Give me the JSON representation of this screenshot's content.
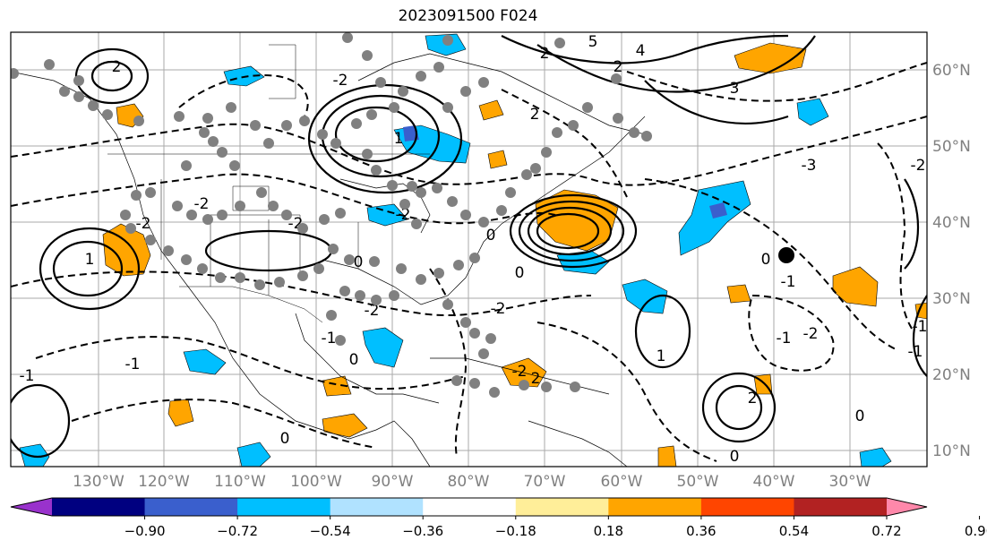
{
  "title": "2023091500 F024",
  "lon_ticks": [
    "130°W",
    "120°W",
    "110°W",
    "100°W",
    "90°W",
    "80°W",
    "70°W",
    "60°W",
    "50°W",
    "40°W",
    "30°W"
  ],
  "lat_ticks": [
    "60°N",
    "50°N",
    "40°N",
    "30°N",
    "20°N",
    "10°N"
  ],
  "colorbar": {
    "colors": [
      "#9932cc",
      "#000080",
      "#3a5fcd",
      "#00bfff",
      "#b0e2ff",
      "#ffffff",
      "#ffee99",
      "#ffa500",
      "#ff4500",
      "#b22222",
      "#ff88aa"
    ],
    "labels": [
      "−0.90",
      "−0.72",
      "−0.54",
      "−0.36",
      "−0.18",
      "0.18",
      "0.36",
      "0.54",
      "0.72",
      "0.90"
    ]
  },
  "contour_labels": [
    "5",
    "4",
    "3",
    "2",
    "2",
    "2",
    "0",
    "0",
    "0",
    "0",
    "0",
    "0",
    "0",
    "0",
    "-2",
    "-2",
    "-3",
    "-2",
    "-1",
    "-1",
    "-1",
    "2",
    "1",
    "1",
    "-2",
    "-2",
    "-2",
    "-2",
    "2",
    "-1",
    "-1",
    "-2",
    "-2",
    "-1",
    "1",
    "2",
    "-2",
    "-1"
  ],
  "colors": {
    "frame": "#000000",
    "grid": "#aaaaaa",
    "tick_text": "#808080",
    "station": "#808080",
    "positive_fill": "#ffa500",
    "negative_fill": "#00bfff"
  }
}
